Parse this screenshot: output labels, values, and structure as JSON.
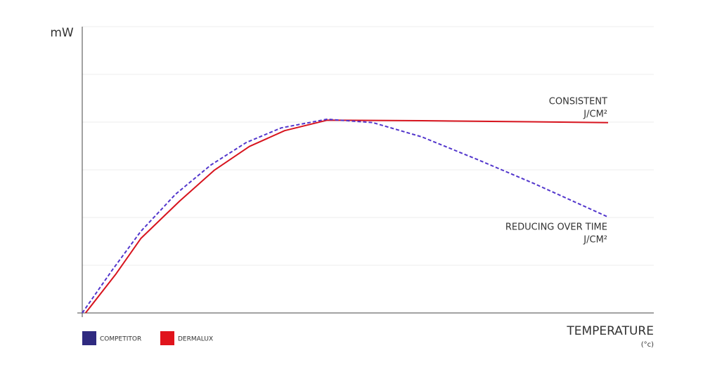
{
  "chart_data": {
    "type": "line",
    "y_label": "mW",
    "x_label": "TEMPERATURE",
    "x_unit": "(°c)",
    "xlim": [
      0,
      12
    ],
    "ylim": [
      0,
      6
    ],
    "yticks": [
      0,
      1,
      2,
      3,
      4,
      5,
      6
    ],
    "grid": true,
    "series": [
      {
        "name": "COMPETITOR",
        "color": "#5236cc",
        "legend_color": "#2f2a80",
        "dashed": true,
        "x": [
          0,
          0.63,
          1.23,
          1.96,
          2.7,
          3.44,
          4.18,
          5.14,
          6.1,
          7.13,
          8.31,
          9.49,
          11.04
        ],
        "values": [
          0,
          0.9,
          1.71,
          2.49,
          3.1,
          3.57,
          3.88,
          4.06,
          3.99,
          3.69,
          3.21,
          2.71,
          2.01
        ]
      },
      {
        "name": "DERMALUX",
        "color": "#d7141e",
        "legend_color": "#e0141c",
        "dashed": false,
        "x": [
          0.07,
          0.71,
          1.23,
          2.04,
          2.77,
          3.51,
          4.25,
          5.14,
          7.13,
          11.04
        ],
        "values": [
          0,
          0.82,
          1.56,
          2.34,
          2.99,
          3.49,
          3.82,
          4.04,
          4.03,
          3.99
        ]
      }
    ],
    "annotations": [
      "CONSISTENT",
      "J/CM²",
      "REDUCING OVER TIME",
      "J/CM²"
    ]
  }
}
